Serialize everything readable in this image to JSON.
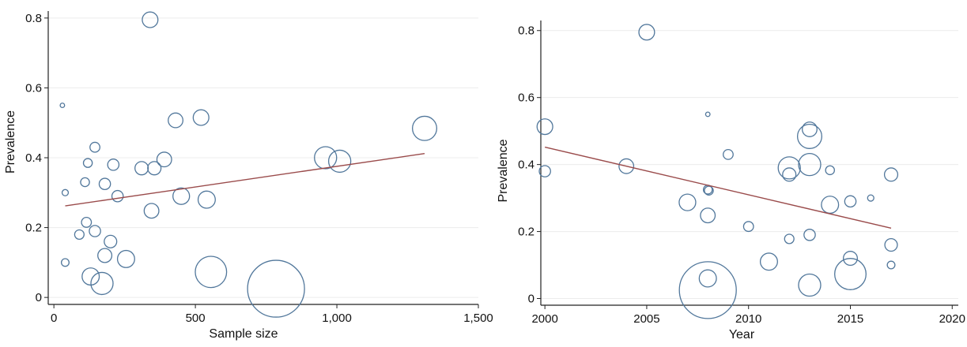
{
  "chart_data": [
    {
      "type": "scatter",
      "subtype": "bubble",
      "title": "",
      "xlabel": "Sample size",
      "ylabel": "Prevalence",
      "xlim": [
        -20,
        1500
      ],
      "ylim": [
        -0.02,
        0.82
      ],
      "xticks": [
        0,
        500,
        1000,
        1500
      ],
      "xtick_labels": [
        "0",
        "500",
        "1,000",
        "1,500"
      ],
      "yticks": [
        0,
        0.2,
        0.4,
        0.6,
        0.8
      ],
      "ytick_labels": [
        "0",
        "0.2",
        "0.4",
        "0.6",
        "0.8"
      ],
      "grid": "horizontal",
      "points": [
        {
          "x": 30,
          "y": 0.55,
          "w": 0.02
        },
        {
          "x": 40,
          "y": 0.3,
          "w": 0.04
        },
        {
          "x": 40,
          "y": 0.1,
          "w": 0.06
        },
        {
          "x": 90,
          "y": 0.18,
          "w": 0.09
        },
        {
          "x": 110,
          "y": 0.33,
          "w": 0.08
        },
        {
          "x": 115,
          "y": 0.215,
          "w": 0.1
        },
        {
          "x": 120,
          "y": 0.385,
          "w": 0.08
        },
        {
          "x": 130,
          "y": 0.06,
          "w": 0.3
        },
        {
          "x": 145,
          "y": 0.43,
          "w": 0.1
        },
        {
          "x": 145,
          "y": 0.19,
          "w": 0.13
        },
        {
          "x": 170,
          "y": 0.04,
          "w": 0.5
        },
        {
          "x": 180,
          "y": 0.12,
          "w": 0.2
        },
        {
          "x": 180,
          "y": 0.325,
          "w": 0.13
        },
        {
          "x": 200,
          "y": 0.16,
          "w": 0.16
        },
        {
          "x": 210,
          "y": 0.38,
          "w": 0.13
        },
        {
          "x": 225,
          "y": 0.29,
          "w": 0.13
        },
        {
          "x": 255,
          "y": 0.11,
          "w": 0.3
        },
        {
          "x": 310,
          "y": 0.37,
          "w": 0.18
        },
        {
          "x": 340,
          "y": 0.795,
          "w": 0.25
        },
        {
          "x": 345,
          "y": 0.248,
          "w": 0.22
        },
        {
          "x": 355,
          "y": 0.37,
          "w": 0.18
        },
        {
          "x": 390,
          "y": 0.395,
          "w": 0.22
        },
        {
          "x": 430,
          "y": 0.507,
          "w": 0.22
        },
        {
          "x": 450,
          "y": 0.29,
          "w": 0.28
        },
        {
          "x": 520,
          "y": 0.515,
          "w": 0.25
        },
        {
          "x": 540,
          "y": 0.28,
          "w": 0.3
        },
        {
          "x": 555,
          "y": 0.073,
          "w": 1.0
        },
        {
          "x": 785,
          "y": 0.025,
          "w": 3.3
        },
        {
          "x": 960,
          "y": 0.4,
          "w": 0.5
        },
        {
          "x": 1010,
          "y": 0.39,
          "w": 0.5
        },
        {
          "x": 1310,
          "y": 0.484,
          "w": 0.6
        }
      ],
      "fit_line": {
        "x": [
          40,
          1310
        ],
        "y": [
          0.262,
          0.412
        ]
      }
    },
    {
      "type": "scatter",
      "subtype": "bubble",
      "title": "",
      "xlabel": "Year",
      "ylabel": "Prevalence",
      "xlim": [
        1999.8,
        2020.3
      ],
      "ylim": [
        -0.02,
        0.83
      ],
      "xticks": [
        2000,
        2005,
        2010,
        2015,
        2020
      ],
      "xtick_labels": [
        "2000",
        "2005",
        "2010",
        "2015",
        "2020"
      ],
      "yticks": [
        0,
        0.2,
        0.4,
        0.6,
        0.8
      ],
      "ytick_labels": [
        "0",
        "0.2",
        "0.4",
        "0.6",
        "0.8"
      ],
      "grid": "horizontal",
      "points": [
        {
          "x": 2000,
          "y": 0.513,
          "w": 0.25
        },
        {
          "x": 2000,
          "y": 0.38,
          "w": 0.13
        },
        {
          "x": 2004,
          "y": 0.395,
          "w": 0.22
        },
        {
          "x": 2005,
          "y": 0.795,
          "w": 0.25
        },
        {
          "x": 2007,
          "y": 0.287,
          "w": 0.28
        },
        {
          "x": 2008,
          "y": 0.55,
          "w": 0.02
        },
        {
          "x": 2008,
          "y": 0.325,
          "w": 0.08
        },
        {
          "x": 2008.05,
          "y": 0.322,
          "w": 0.08
        },
        {
          "x": 2008,
          "y": 0.248,
          "w": 0.22
        },
        {
          "x": 2008,
          "y": 0.06,
          "w": 0.3
        },
        {
          "x": 2008,
          "y": 0.025,
          "w": 3.3
        },
        {
          "x": 2009,
          "y": 0.43,
          "w": 0.1
        },
        {
          "x": 2010,
          "y": 0.215,
          "w": 0.1
        },
        {
          "x": 2011,
          "y": 0.11,
          "w": 0.3
        },
        {
          "x": 2012,
          "y": 0.39,
          "w": 0.5
        },
        {
          "x": 2012,
          "y": 0.37,
          "w": 0.18
        },
        {
          "x": 2012,
          "y": 0.178,
          "w": 0.09
        },
        {
          "x": 2013,
          "y": 0.505,
          "w": 0.22
        },
        {
          "x": 2013,
          "y": 0.484,
          "w": 0.6
        },
        {
          "x": 2013,
          "y": 0.4,
          "w": 0.5
        },
        {
          "x": 2013,
          "y": 0.19,
          "w": 0.13
        },
        {
          "x": 2013,
          "y": 0.04,
          "w": 0.5
        },
        {
          "x": 2014,
          "y": 0.383,
          "w": 0.08
        },
        {
          "x": 2014,
          "y": 0.28,
          "w": 0.3
        },
        {
          "x": 2015,
          "y": 0.29,
          "w": 0.13
        },
        {
          "x": 2015,
          "y": 0.12,
          "w": 0.2
        },
        {
          "x": 2015,
          "y": 0.073,
          "w": 1.0
        },
        {
          "x": 2016,
          "y": 0.3,
          "w": 0.04
        },
        {
          "x": 2017,
          "y": 0.37,
          "w": 0.18
        },
        {
          "x": 2017,
          "y": 0.16,
          "w": 0.16
        },
        {
          "x": 2017,
          "y": 0.1,
          "w": 0.06
        }
      ],
      "fit_line": {
        "x": [
          2000,
          2017
        ],
        "y": [
          0.452,
          0.21
        ]
      }
    }
  ],
  "colors": {
    "bubble_stroke": "#51779b",
    "fit_line": "#9a4b4b",
    "gridline": "#ececec",
    "axis": "#222222"
  }
}
